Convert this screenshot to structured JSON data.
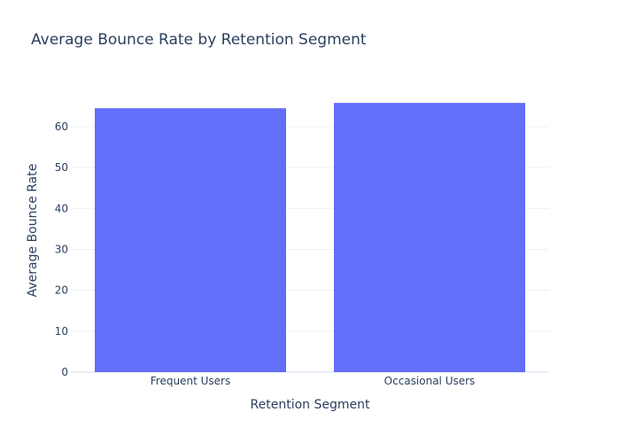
{
  "chart_data": {
    "type": "bar",
    "title": "Average Bounce Rate by Retention Segment",
    "xlabel": "Retention Segment",
    "ylabel": "Average Bounce Rate",
    "categories": [
      "Frequent Users",
      "Occasional Users"
    ],
    "values": [
      64.5,
      65.8
    ],
    "ylim": [
      0,
      69.3
    ],
    "yticks": [
      0,
      10,
      20,
      30,
      40,
      50,
      60
    ],
    "grid": true,
    "legend": "none",
    "bar_color": "#636efa",
    "gridline_color": "#ebf0f8",
    "text_color": "#2a3f5f"
  }
}
